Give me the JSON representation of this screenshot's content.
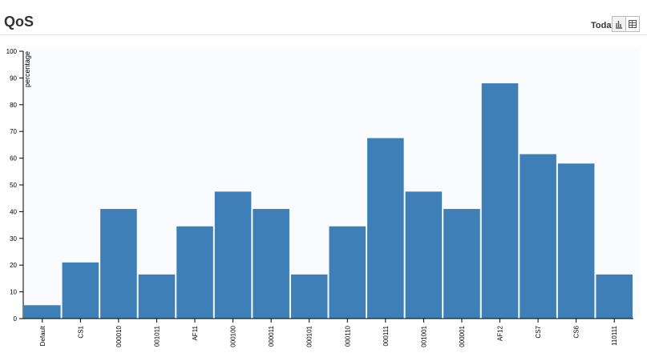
{
  "header": {
    "title": "QoS",
    "period": "Today"
  },
  "chart_data": {
    "type": "bar",
    "y_label": "percentage",
    "categories": [
      "Default",
      "CS1",
      "000010",
      "001011",
      "AF11",
      "000100",
      "000011",
      "000101",
      "000110",
      "000111",
      "001001",
      "000001",
      "AF12",
      "CS7",
      "CS6",
      "110111"
    ],
    "values": [
      5,
      21,
      41,
      16.5,
      34.5,
      47.5,
      41,
      16.5,
      34.5,
      67.5,
      47.5,
      41,
      88,
      61.5,
      58,
      16.5
    ],
    "color": "#3f7fb8",
    "ylim": [
      0,
      100
    ],
    "yticks": [
      0,
      10,
      20,
      30,
      40,
      50,
      60,
      70,
      80,
      90,
      100
    ],
    "grid": false
  }
}
